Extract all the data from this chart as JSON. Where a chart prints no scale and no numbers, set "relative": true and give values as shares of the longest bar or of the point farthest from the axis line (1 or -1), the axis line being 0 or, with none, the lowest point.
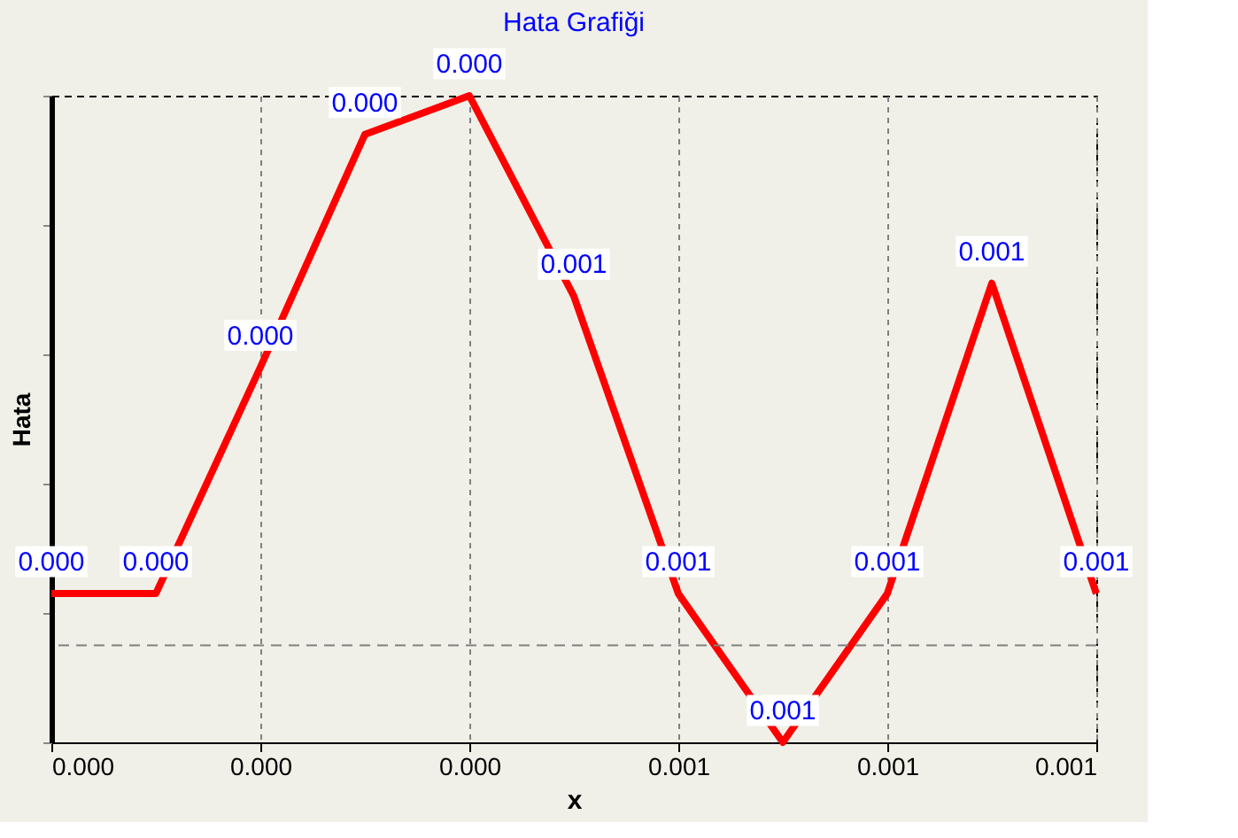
{
  "chart_data": {
    "type": "line",
    "title": "Hata Grafiği",
    "xlabel": "x",
    "ylabel": "Hata",
    "relative": true,
    "x": [
      0,
      0.0001,
      0.0002,
      0.0003,
      0.0004,
      0.0005,
      0.0006,
      0.0007,
      0.0008,
      0.0009,
      0.001
    ],
    "series": [
      {
        "color": "#ff0000",
        "values": [
          0.23,
          0.23,
          0.58,
          0.94,
          1,
          0.69,
          0.23,
          0,
          0.23,
          0.71,
          0.23
        ]
      }
    ],
    "annotations": [
      {
        "text": "0.000",
        "x": 0,
        "y": 0.23
      },
      {
        "text": "0.000",
        "x": 0.0001,
        "y": 0.23
      },
      {
        "text": "0.000",
        "x": 0.0002,
        "y": 0.58
      },
      {
        "text": "0.000",
        "x": 0.0003,
        "y": 0.94
      },
      {
        "text": "0.000",
        "x": 0.0004,
        "y": 1
      },
      {
        "text": "0.001",
        "x": 0.0005,
        "y": 0.69
      },
      {
        "text": "0.001",
        "x": 0.0006,
        "y": 0.23
      },
      {
        "text": "0.001",
        "x": 0.0007,
        "y": 0
      },
      {
        "text": "0.001",
        "x": 0.0008,
        "y": 0.23
      },
      {
        "text": "0.001",
        "x": 0.0009,
        "y": 0.71
      },
      {
        "text": "0.001",
        "x": 0.001,
        "y": 0.23
      }
    ],
    "xlim": [
      0,
      0.001
    ],
    "xticks": [
      {
        "value": 0,
        "label": "0.000"
      },
      {
        "value": 0.0002,
        "label": "0.000"
      },
      {
        "value": 0.0004,
        "label": "0.000"
      },
      {
        "value": 0.0006,
        "label": "0.001"
      },
      {
        "value": 0.0008,
        "label": "0.001"
      },
      {
        "value": 0.001,
        "label": "0.001"
      }
    ],
    "ref_lines": [
      {
        "axis": "y",
        "value": 0.15,
        "line_style": "dashed",
        "color": "#808080"
      }
    ],
    "grid": "x",
    "marker": "none",
    "line_style": "solid",
    "tick_labels": "x"
  }
}
